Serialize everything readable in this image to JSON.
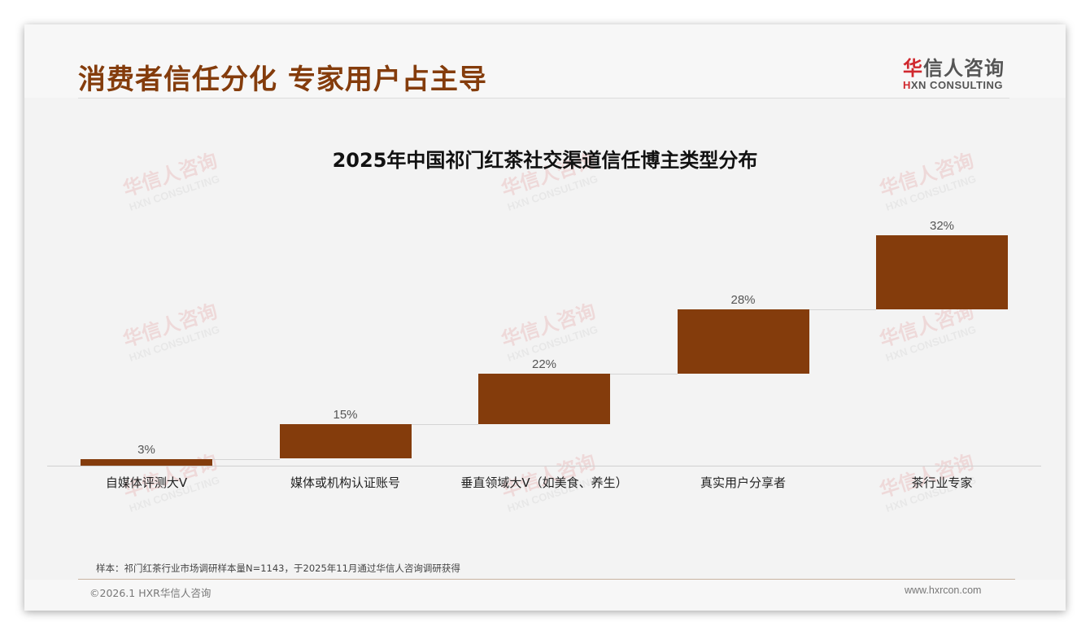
{
  "header": {
    "title": "消费者信任分化 专家用户占主导",
    "logo_cn_first": "华",
    "logo_cn_rest": "信人咨询",
    "logo_en_first": "H",
    "logo_en_rest": "XN CONSULTING"
  },
  "watermark": {
    "cn": "华信人咨询",
    "en": "HXN CONSULTING"
  },
  "chart_data": {
    "type": "bar",
    "subtype": "waterfall",
    "title": "2025年中国祁门红茶社交渠道信任博主类型分布",
    "categories": [
      "自媒体评测大V",
      "媒体或机构认证账号",
      "垂直领域大V（如美食、养生）",
      "真实用户分享者",
      "茶行业专家"
    ],
    "values": [
      3,
      15,
      22,
      28,
      32
    ],
    "value_labels": [
      "3%",
      "15%",
      "22%",
      "28%",
      "32%"
    ],
    "cumulative": [
      3,
      18,
      40,
      68,
      100
    ],
    "unit": "%",
    "xlabel": "",
    "ylabel": "",
    "ylim": [
      0,
      100
    ],
    "grid": false,
    "legend": "none",
    "bar_color": "#843c0c"
  },
  "footer": {
    "sample_note": "样本：祁门红茶行业市场调研样本量N=1143，于2025年11月通过华信人咨询调研获得",
    "copyright": "©2026.1 HXR华信人咨询",
    "website": "www.hxrcon.com"
  }
}
